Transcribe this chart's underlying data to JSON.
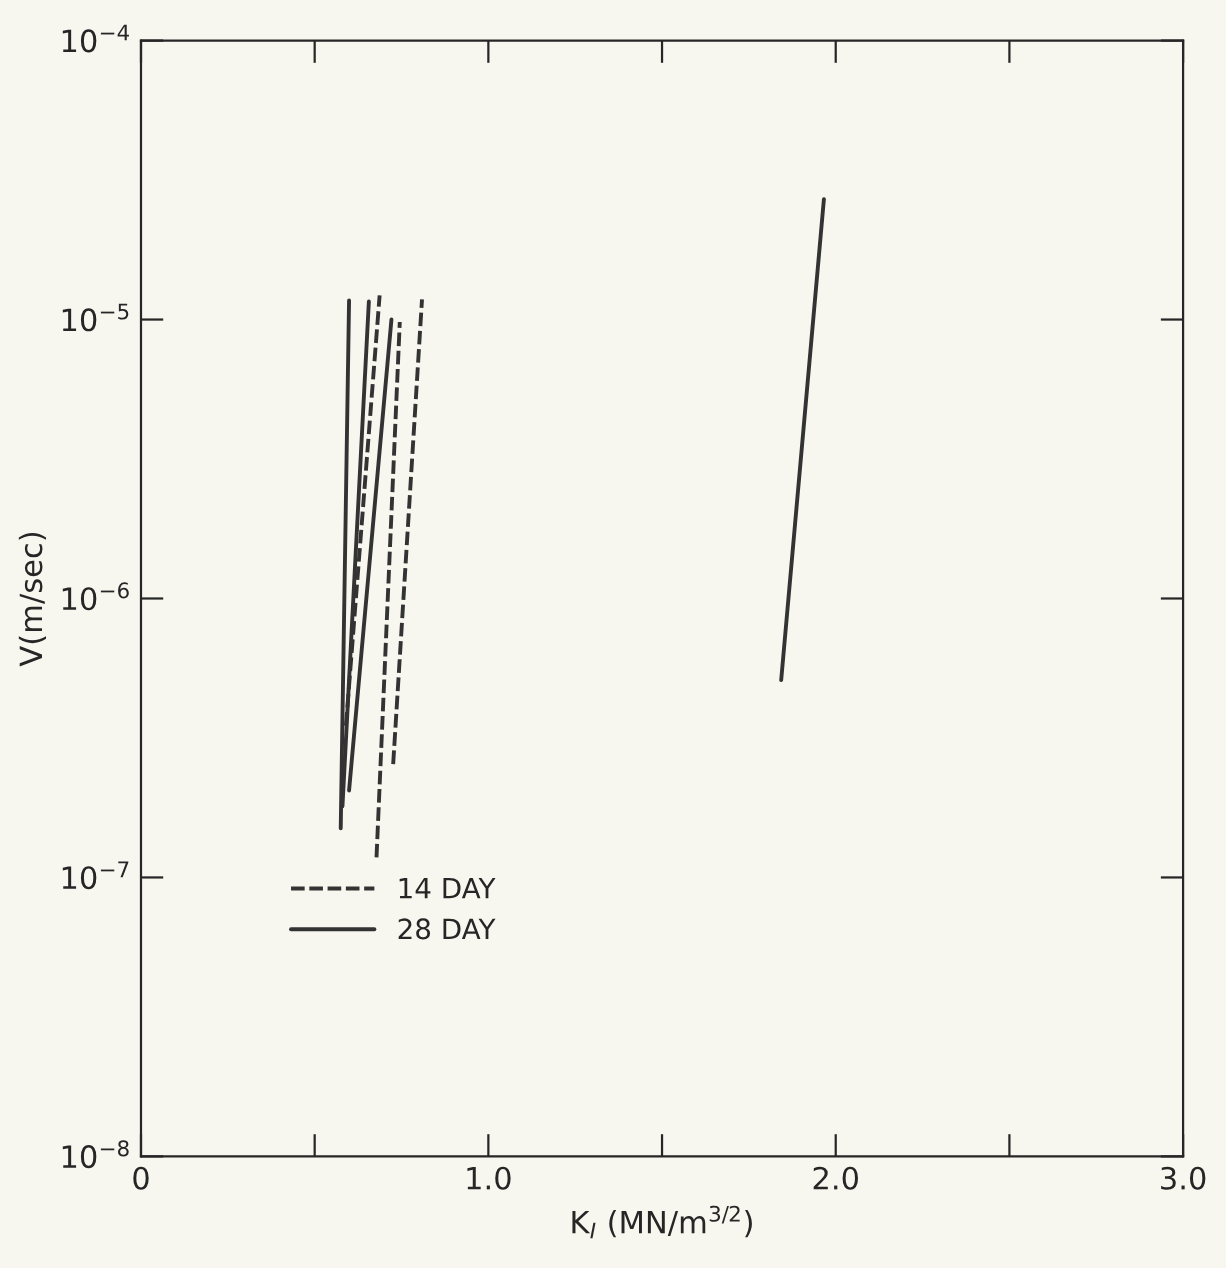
{
  "chart_data": {
    "type": "line",
    "xlabel": "K$_{I}$ (MN/m$^{3/2}$)",
    "ylabel": "V(m/sec)",
    "log": "y",
    "xlim": [
      0,
      3.0
    ],
    "ylim": [
      1e-08,
      0.0001
    ],
    "xticks": [
      {
        "value": 0,
        "label": "0"
      },
      {
        "value": 0.5,
        "label": null
      },
      {
        "value": 1.0,
        "label": "1.0"
      },
      {
        "value": 1.5,
        "label": null
      },
      {
        "value": 2.0,
        "label": "2.0"
      },
      {
        "value": 2.5,
        "label": null
      },
      {
        "value": 3.0,
        "label": "3.0"
      }
    ],
    "yticks": [
      {
        "value": 1e-08,
        "label": "10$^{−8}$"
      },
      {
        "value": 1e-07,
        "label": "10$^{−7}$"
      },
      {
        "value": 1e-06,
        "label": "10$^{−6}$"
      },
      {
        "value": 1e-05,
        "label": "10$^{−5}$"
      },
      {
        "value": 0.0001,
        "label": "10$^{−4}$"
      }
    ],
    "grid": false,
    "legend": "bottom left",
    "marker": "none",
    "series": [
      {
        "name": "14 DAY",
        "color": "#333333",
        "line_style": "dashed",
        "x": [
          0.59,
          0.687
        ],
        "values": [
          3.5e-07,
          1.22e-05
        ]
      },
      {
        "color": "#333333",
        "line_style": "dashed",
        "x": [
          0.678,
          0.745
        ],
        "values": [
          1.18e-07,
          9.8e-06
        ]
      },
      {
        "color": "#333333",
        "line_style": "dashed",
        "x": [
          0.726,
          0.809
        ],
        "values": [
          2.55e-07,
          1.18e-05
        ]
      },
      {
        "name": "28 DAY",
        "color": "#333333",
        "line_style": "solid",
        "x": [
          0.575,
          0.599
        ],
        "values": [
          1.5e-07,
          1.17e-05
        ]
      },
      {
        "color": "#333333",
        "line_style": "solid",
        "x": [
          0.58,
          0.656
        ],
        "values": [
          1.8e-07,
          1.16e-05
        ]
      },
      {
        "color": "#333333",
        "line_style": "solid",
        "x": [
          0.599,
          0.721
        ],
        "values": [
          2.05e-07,
          1e-05
        ]
      },
      {
        "color": "#333333",
        "line_style": "solid",
        "x": [
          1.843,
          1.966
        ],
        "values": [
          5.1e-07,
          2.7e-05
        ]
      }
    ]
  }
}
